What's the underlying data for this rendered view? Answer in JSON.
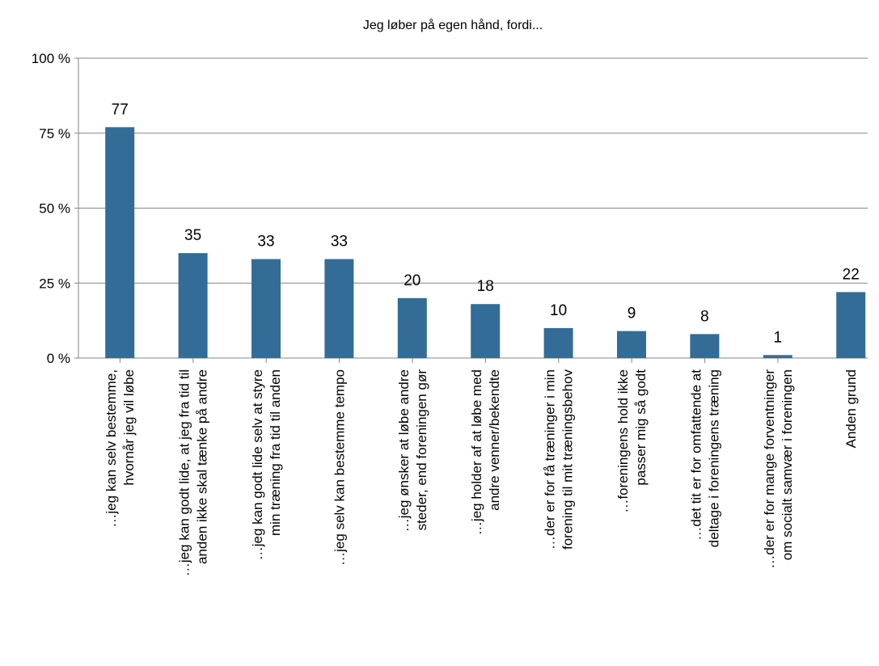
{
  "chart_data": {
    "type": "bar",
    "title": "Jeg løber på egen hånd, fordi...",
    "categories": [
      "…jeg kan selv bestemme,\nhvornår jeg vil løbe",
      "…jeg kan godt lide, at jeg fra tid til\nanden ikke skal tænke på andre",
      "…jeg kan godt lide selv at styre\nmin træning fra tid til anden",
      "…jeg selv kan bestemme tempo",
      "…jeg ønsker at løbe andre\nsteder, end foreningen gør",
      "…jeg holder af at løbe med\nandre venner/bekendte",
      "…der er for få træninger i min\nforening til mit træningsbehov",
      "…foreningens hold ikke\npasser mig så godt",
      "…det tit er for omfattende at\ndeltage i foreningens træning",
      "…der er for mange forventninger\nom socialt samvær i foreningen",
      "Anden grund"
    ],
    "values": [
      77,
      35,
      33,
      33,
      20,
      18,
      10,
      9,
      8,
      1,
      22
    ],
    "color": "#336c96",
    "ylim": [
      0,
      100
    ],
    "yticks": [
      {
        "value": 0,
        "label": "0 %"
      },
      {
        "value": 25,
        "label": "25 %"
      },
      {
        "value": 50,
        "label": "50 %"
      },
      {
        "value": 75,
        "label": "75 %"
      },
      {
        "value": 100,
        "label": "100 %"
      }
    ],
    "grid": true
  }
}
